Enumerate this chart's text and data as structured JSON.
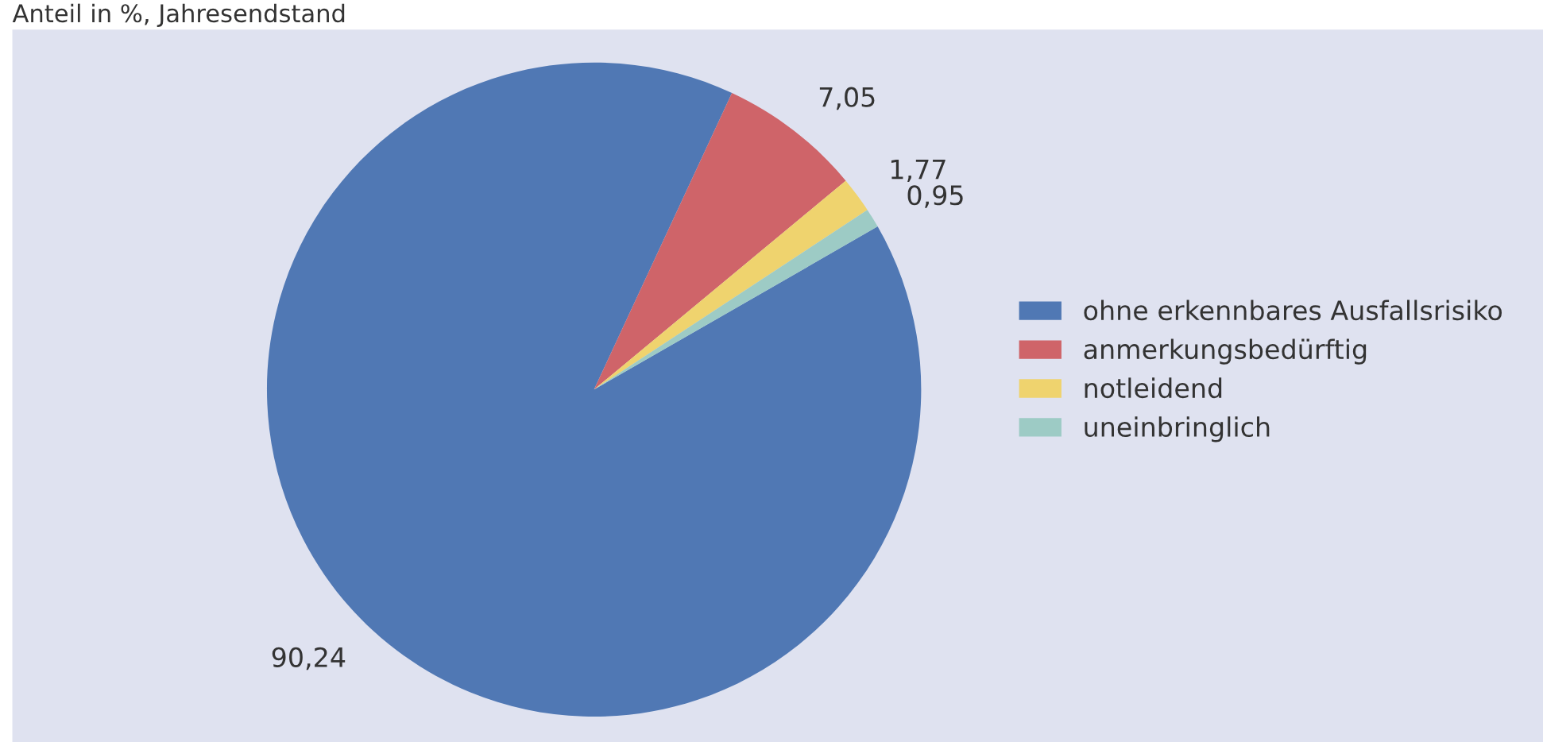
{
  "chart_data": {
    "type": "pie",
    "subtitle": "Anteil in %, Jahresendstand",
    "categories": [
      "ohne erkennbares Ausfallsrisiko",
      "anmerkungsbedürftig",
      "notleidend",
      "uneinbringlich"
    ],
    "values": [
      90.24,
      7.05,
      1.77,
      0.95
    ],
    "value_labels": [
      "90,24",
      "7,05",
      "1,77",
      "0,95"
    ],
    "colors": [
      "#5078b4",
      "#cf6469",
      "#efd36e",
      "#9dcbc5"
    ],
    "legend": "right"
  }
}
